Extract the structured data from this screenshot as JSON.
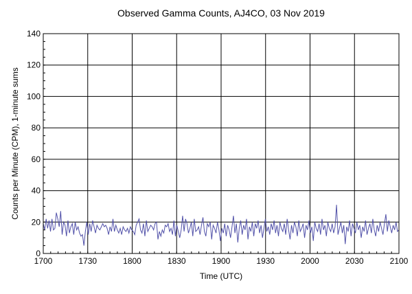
{
  "chart_data": {
    "type": "line",
    "title": "Observed Gamma Counts, AJ4CO, 03 Nov 2019",
    "xlabel": "Time (UTC)",
    "ylabel": "Counts per Minute (CPM), 1-minute sums",
    "xlim": [
      0,
      240
    ],
    "ylim": [
      0,
      140
    ],
    "x_ticks": [
      {
        "x": 0,
        "label": "1700"
      },
      {
        "x": 30,
        "label": "1730"
      },
      {
        "x": 60,
        "label": "1800"
      },
      {
        "x": 90,
        "label": "1830"
      },
      {
        "x": 120,
        "label": "1900"
      },
      {
        "x": 150,
        "label": "1930"
      },
      {
        "x": 180,
        "label": "2000"
      },
      {
        "x": 210,
        "label": "2030"
      },
      {
        "x": 240,
        "label": "2100"
      }
    ],
    "y_ticks": [
      0,
      20,
      40,
      60,
      80,
      100,
      120,
      140
    ],
    "grid": true,
    "line_color": "#5050a8",
    "series": [
      {
        "values": [
          19,
          15,
          22,
          16,
          21,
          14,
          22,
          15,
          16,
          26,
          22,
          17,
          27,
          12,
          20,
          18,
          11,
          21,
          13,
          17,
          19,
          12,
          20,
          15,
          17,
          13,
          11,
          12,
          5,
          14,
          20,
          12,
          19,
          14,
          21,
          17,
          13,
          18,
          16,
          15,
          17,
          19,
          17,
          18,
          16,
          12,
          17,
          14,
          22,
          14,
          18,
          15,
          13,
          16,
          12,
          17,
          15,
          14,
          16,
          13,
          17,
          15,
          14,
          12,
          18,
          20,
          22,
          15,
          13,
          19,
          11,
          21,
          14,
          16,
          18,
          17,
          15,
          19,
          20,
          9,
          14,
          11,
          15,
          13,
          18,
          17,
          19,
          14,
          16,
          12,
          21,
          11,
          18,
          14,
          10,
          15,
          24,
          14,
          22,
          19,
          13,
          16,
          20,
          11,
          22,
          14,
          15,
          17,
          12,
          18,
          23,
          14,
          11,
          19,
          17,
          20,
          9,
          18,
          16,
          13,
          20,
          15,
          8,
          16,
          13,
          19,
          11,
          18,
          15,
          10,
          17,
          24,
          13,
          19,
          7,
          16,
          21,
          12,
          18,
          15,
          22,
          9,
          17,
          14,
          20,
          11,
          19,
          16,
          21,
          13,
          18,
          10,
          16,
          22,
          14,
          17,
          12,
          19,
          15,
          21,
          13,
          18,
          11,
          20,
          16,
          14,
          19,
          12,
          22,
          15,
          9,
          18,
          13,
          20,
          17,
          11,
          21,
          14,
          16,
          19,
          10,
          18,
          15,
          21,
          13,
          17,
          8,
          20,
          16,
          14,
          19,
          12,
          22,
          15,
          18,
          11,
          20,
          16,
          14,
          19,
          13,
          17,
          31,
          12,
          16,
          20,
          13,
          18,
          6,
          17,
          14,
          21,
          11,
          19,
          16,
          13,
          20,
          15,
          18,
          10,
          17,
          14,
          21,
          12,
          16,
          19,
          13,
          22,
          15,
          11,
          18,
          14,
          20,
          16,
          12,
          19,
          25,
          14,
          21,
          17,
          13,
          18,
          15,
          20,
          14,
          15
        ]
      }
    ]
  }
}
